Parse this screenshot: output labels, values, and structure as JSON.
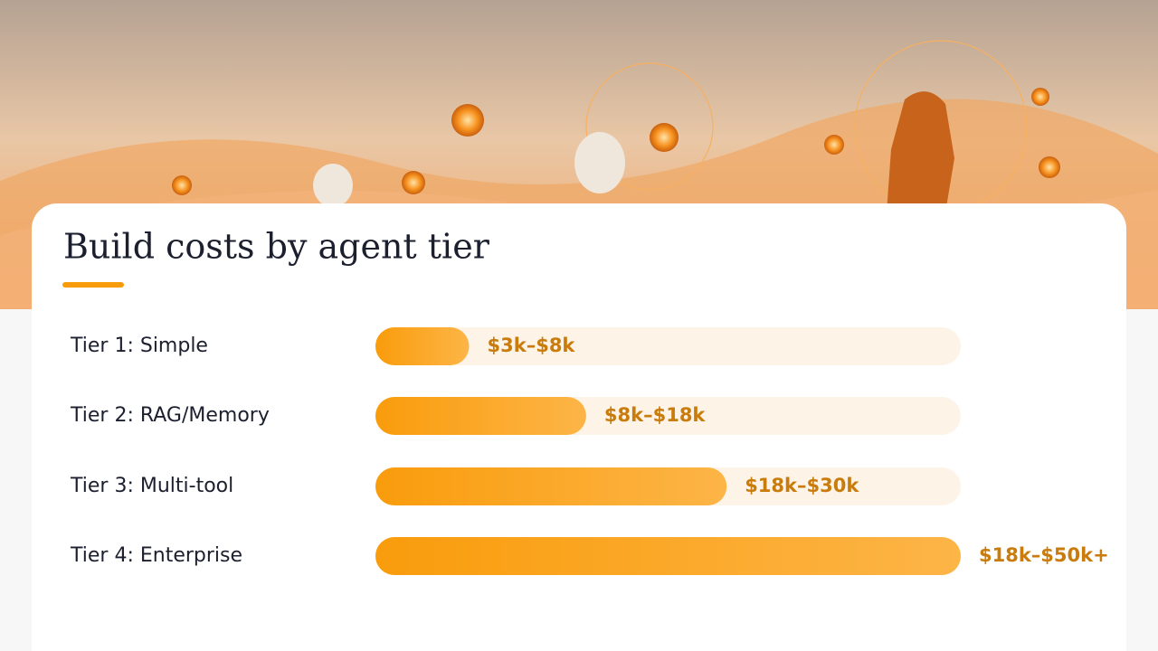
{
  "chart_data": {
    "type": "bar",
    "orientation": "horizontal",
    "title": "Build costs by agent tier",
    "categories": [
      "Tier 1: Simple",
      "Tier 2: RAG/Memory",
      "Tier 3: Multi-tool",
      "Tier 4: Enterprise"
    ],
    "values": [
      8,
      18,
      30,
      50
    ],
    "value_labels": [
      "$3k–$8k",
      "$8k–$18k",
      "$18k–$30k",
      "$18k–$50k+"
    ],
    "xlim": [
      0,
      50
    ],
    "color": "#f99c0c",
    "track_color": "#fdf3e6",
    "label_color": "#c97b0c"
  }
}
